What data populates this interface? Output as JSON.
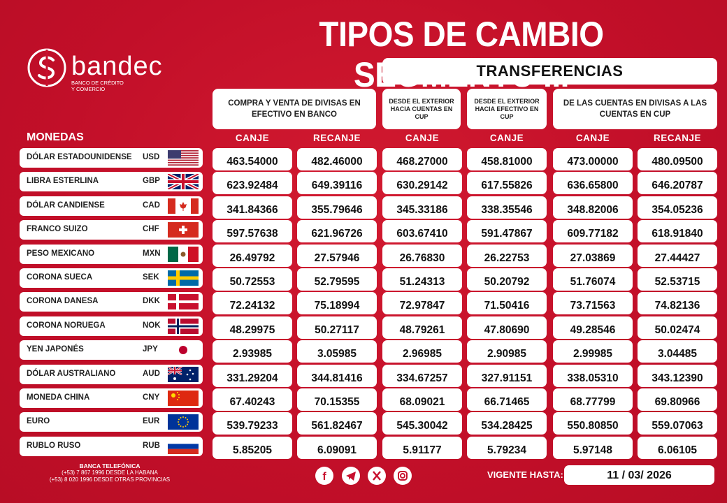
{
  "title": "TIPOS DE CAMBIO SEGMENTO III",
  "brand": {
    "name": "bandec",
    "subtitle_line1": "BANCO DE CRÉDITO",
    "subtitle_line2": "Y COMERCIO"
  },
  "transferencias_label": "TRANSFERENCIAS",
  "groups": {
    "efectivo": "COMPRA Y VENTA DE DIVISAS EN EFECTIVO EN BANCO",
    "exterior_cuentas": "DESDE EL EXTERIOR HACIA CUENTAS EN CUP",
    "exterior_efectivo": "DESDE EL EXTERIOR HACIA EFECTIVO EN CUP",
    "cuentas_divisas": "DE LAS CUENTAS EN DIVISAS A LAS CUENTAS EN CUP"
  },
  "monedas_label": "MONEDAS",
  "column_headers": [
    "CANJE",
    "RECANJE",
    "CANJE",
    "CANJE",
    "CANJE",
    "RECANJE"
  ],
  "currencies": [
    {
      "name": "DÓLAR ESTADOUNIDENSE",
      "code": "USD",
      "flag": "usa-flag",
      "values": [
        "463.54000",
        "482.46000",
        "468.27000",
        "458.81000",
        "473.00000",
        "480.09500"
      ]
    },
    {
      "name": "LIBRA ESTERLINA",
      "code": "GBP",
      "flag": "uk-flag",
      "values": [
        "623.92484",
        "649.39116",
        "630.29142",
        "617.55826",
        "636.65800",
        "646.20787"
      ]
    },
    {
      "name": "DÓLAR CANDIENSE",
      "code": "CAD",
      "flag": "canada-flag",
      "values": [
        "341.84366",
        "355.79646",
        "345.33186",
        "338.35546",
        "348.82006",
        "354.05236"
      ]
    },
    {
      "name": "FRANCO SUIZO",
      "code": "CHF",
      "flag": "switzerland-flag",
      "values": [
        "597.57638",
        "621.96726",
        "603.67410",
        "591.47867",
        "609.77182",
        "618.91840"
      ]
    },
    {
      "name": "PESO MEXICANO",
      "code": "MXN",
      "flag": "mexico-flag",
      "values": [
        "26.49792",
        "27.57946",
        "26.76830",
        "26.22753",
        "27.03869",
        "27.44427"
      ]
    },
    {
      "name": "CORONA SUECA",
      "code": "SEK",
      "flag": "sweden-flag",
      "values": [
        "50.72553",
        "52.79595",
        "51.24313",
        "50.20792",
        "51.76074",
        "52.53715"
      ]
    },
    {
      "name": "CORONA DANESA",
      "code": "DKK",
      "flag": "denmark-flag",
      "values": [
        "72.24132",
        "75.18994",
        "72.97847",
        "71.50416",
        "73.71563",
        "74.82136"
      ]
    },
    {
      "name": "CORONA NORUEGA",
      "code": "NOK",
      "flag": "norway-flag",
      "values": [
        "48.29975",
        "50.27117",
        "48.79261",
        "47.80690",
        "49.28546",
        "50.02474"
      ]
    },
    {
      "name": "YEN JAPONÉS",
      "code": "JPY",
      "flag": "japan-flag",
      "values": [
        "2.93985",
        "3.05985",
        "2.96985",
        "2.90985",
        "2.99985",
        "3.04485"
      ]
    },
    {
      "name": "DÓLAR AUSTRALIANO",
      "code": "AUD",
      "flag": "australia-flag",
      "values": [
        "331.29204",
        "344.81416",
        "334.67257",
        "327.91151",
        "338.05310",
        "343.12390"
      ]
    },
    {
      "name": "MONEDA CHINA",
      "code": "CNY",
      "flag": "china-flag",
      "values": [
        "67.40243",
        "70.15355",
        "68.09021",
        "66.71465",
        "68.77799",
        "69.80966"
      ]
    },
    {
      "name": "EURO",
      "code": "EUR",
      "flag": "eu-flag",
      "values": [
        "539.79233",
        "561.82467",
        "545.30042",
        "534.28425",
        "550.80850",
        "559.07063"
      ]
    },
    {
      "name": "RUBLO RUSO",
      "code": "RUB",
      "flag": "russia-flag",
      "values": [
        "5.85205",
        "6.09091",
        "5.91177",
        "5.79234",
        "5.97148",
        "6.06105"
      ]
    }
  ],
  "footer": {
    "banca_title": "BANCA TELEFÓNICA",
    "line1": "(+53) 7 867 1996 DESDE LA HABANA",
    "line2": "(+53) 8 020 1996 DESDE OTRAS PROVINCIAS",
    "social": [
      "facebook-icon",
      "telegram-icon",
      "x-icon",
      "instagram-icon"
    ],
    "vigente_label": "VIGENTE HASTA:",
    "vigente_date": "11 / 03/ 2026"
  },
  "colors": {
    "background": "#c8102e",
    "panel": "#ffffff",
    "text": "#111111"
  }
}
